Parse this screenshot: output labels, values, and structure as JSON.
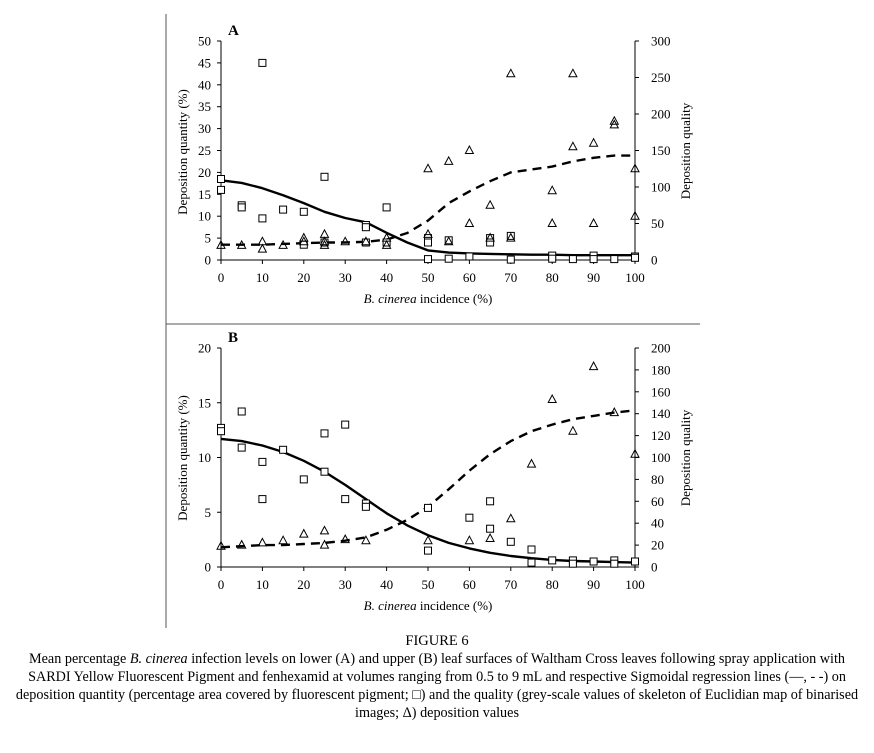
{
  "figure": {
    "label": "FIGURE 6",
    "caption": {
      "p1": "Mean percentage ",
      "i1": "B. cinerea",
      "p2": " infection levels on lower (A) and upper (B) leaf surfaces of Waltham Cross leaves following spray application with SARDI Yellow Fluorescent Pigment and fenhexamid at volumes ranging from 0.5 to 9 mL and respective Sigmoidal regression lines (—, - -) on deposition quantity (percentage area covered by fluorescent pigment; □) and the quality (grey-scale values of skeleton of Euclidian map of binarised images; Δ) deposition values"
    }
  },
  "chart_data": [
    {
      "type": "scatter",
      "panel_label": "A",
      "xlabel_italic": "B. cinerea",
      "xlabel_rest": " incidence (%)",
      "ylabel": "Deposition quantity (%)",
      "y2label": "Deposition quality",
      "xlim": [
        0,
        100
      ],
      "ylim": [
        0,
        50
      ],
      "y2lim": [
        0,
        300
      ],
      "x_ticks": [
        0,
        10,
        20,
        30,
        40,
        50,
        60,
        70,
        80,
        90,
        100
      ],
      "y_ticks": [
        0,
        5,
        10,
        15,
        20,
        25,
        30,
        35,
        40,
        45,
        50
      ],
      "y2_ticks": [
        0,
        50,
        100,
        150,
        200,
        250,
        300
      ],
      "series": [
        {
          "axis": "left",
          "marker": "square",
          "points": [
            [
              0,
              18.5
            ],
            [
              0,
              16
            ],
            [
              5,
              12.5
            ],
            [
              5,
              12
            ],
            [
              10,
              45
            ],
            [
              10,
              9.5
            ],
            [
              15,
              11.5
            ],
            [
              20,
              11
            ],
            [
              20,
              3.5
            ],
            [
              25,
              19
            ],
            [
              25,
              4
            ],
            [
              35,
              8
            ],
            [
              35,
              7.5
            ],
            [
              35,
              4
            ],
            [
              40,
              12
            ],
            [
              40,
              4
            ],
            [
              50,
              5
            ],
            [
              50,
              4
            ],
            [
              50,
              0.2
            ],
            [
              55,
              4.5
            ],
            [
              55,
              0.3
            ],
            [
              60,
              0.8
            ],
            [
              65,
              5
            ],
            [
              65,
              4
            ],
            [
              70,
              5.5
            ],
            [
              70,
              0.1
            ],
            [
              80,
              1
            ],
            [
              80,
              0.3
            ],
            [
              85,
              0.2
            ],
            [
              90,
              1
            ],
            [
              90,
              0.2
            ],
            [
              95,
              0.2
            ],
            [
              100,
              0.8
            ],
            [
              100,
              0.5
            ]
          ]
        },
        {
          "axis": "right",
          "marker": "triangle",
          "points": [
            [
              0,
              20
            ],
            [
              5,
              20
            ],
            [
              10,
              25
            ],
            [
              10,
              15
            ],
            [
              15,
              20
            ],
            [
              20,
              30
            ],
            [
              20,
              25
            ],
            [
              25,
              35
            ],
            [
              25,
              25
            ],
            [
              25,
              20
            ],
            [
              30,
              25
            ],
            [
              35,
              25
            ],
            [
              40,
              30
            ],
            [
              40,
              20
            ],
            [
              50,
              35
            ],
            [
              50,
              125
            ],
            [
              55,
              135
            ],
            [
              55,
              25
            ],
            [
              60,
              150
            ],
            [
              60,
              50
            ],
            [
              65,
              75
            ],
            [
              65,
              30
            ],
            [
              70,
              255
            ],
            [
              70,
              30
            ],
            [
              80,
              95
            ],
            [
              80,
              50
            ],
            [
              85,
              255
            ],
            [
              85,
              155
            ],
            [
              90,
              160
            ],
            [
              90,
              50
            ],
            [
              95,
              190
            ],
            [
              95,
              185
            ],
            [
              100,
              125
            ],
            [
              100,
              60
            ]
          ]
        }
      ],
      "curves": [
        {
          "axis": "left",
          "style": "solid",
          "points": [
            [
              0,
              18.2
            ],
            [
              5,
              17.6
            ],
            [
              10,
              16.4
            ],
            [
              15,
              14.8
            ],
            [
              20,
              13
            ],
            [
              25,
              11
            ],
            [
              30,
              9.6
            ],
            [
              35,
              8.6
            ],
            [
              40,
              6.2
            ],
            [
              45,
              4
            ],
            [
              50,
              2.2
            ],
            [
              55,
              1.7
            ],
            [
              60,
              1.5
            ],
            [
              65,
              1.4
            ],
            [
              70,
              1.3
            ],
            [
              75,
              1.2
            ],
            [
              80,
              1.2
            ],
            [
              85,
              1.1
            ],
            [
              90,
              1.1
            ],
            [
              95,
              1.1
            ],
            [
              100,
              1.1
            ]
          ]
        },
        {
          "axis": "right",
          "style": "dashed",
          "points": [
            [
              0,
              21
            ],
            [
              5,
              21
            ],
            [
              10,
              21
            ],
            [
              15,
              22
            ],
            [
              20,
              23
            ],
            [
              25,
              24
            ],
            [
              30,
              24
            ],
            [
              35,
              25
            ],
            [
              40,
              28
            ],
            [
              45,
              37
            ],
            [
              50,
              54
            ],
            [
              55,
              78
            ],
            [
              60,
              94
            ],
            [
              65,
              108
            ],
            [
              70,
              120
            ],
            [
              75,
              124
            ],
            [
              80,
              128
            ],
            [
              85,
              135
            ],
            [
              90,
              140
            ],
            [
              95,
              143
            ],
            [
              100,
              143
            ]
          ]
        }
      ]
    },
    {
      "type": "scatter",
      "panel_label": "B",
      "xlabel_italic": "B. cinerea",
      "xlabel_rest": " incidence (%)",
      "ylabel": "Deposition quantity (%)",
      "y2label": "Deposition quality",
      "xlim": [
        0,
        100
      ],
      "ylim": [
        0,
        20
      ],
      "y2lim": [
        0,
        200
      ],
      "x_ticks": [
        0,
        10,
        20,
        30,
        40,
        50,
        60,
        70,
        80,
        90,
        100
      ],
      "y_ticks": [
        0,
        5,
        10,
        15,
        20
      ],
      "y2_ticks": [
        0,
        20,
        40,
        60,
        80,
        100,
        120,
        140,
        160,
        180,
        200
      ],
      "series": [
        {
          "axis": "left",
          "marker": "square",
          "points": [
            [
              0,
              12.7
            ],
            [
              0,
              12.4
            ],
            [
              5,
              14.2
            ],
            [
              5,
              10.9
            ],
            [
              10,
              9.6
            ],
            [
              10,
              6.2
            ],
            [
              15,
              10.7
            ],
            [
              20,
              8
            ],
            [
              25,
              12.2
            ],
            [
              25,
              8.7
            ],
            [
              30,
              13
            ],
            [
              30,
              6.2
            ],
            [
              35,
              5.8
            ],
            [
              35,
              5.5
            ],
            [
              50,
              5.4
            ],
            [
              50,
              1.5
            ],
            [
              60,
              4.5
            ],
            [
              65,
              6
            ],
            [
              65,
              3.5
            ],
            [
              70,
              2.3
            ],
            [
              75,
              1.6
            ],
            [
              75,
              0.4
            ],
            [
              80,
              0.6
            ],
            [
              85,
              0.6
            ],
            [
              85,
              0.3
            ],
            [
              90,
              0.5
            ],
            [
              95,
              0.6
            ],
            [
              95,
              0.3
            ],
            [
              100,
              0.5
            ]
          ]
        },
        {
          "axis": "right",
          "marker": "triangle",
          "points": [
            [
              0,
              19
            ],
            [
              5,
              20
            ],
            [
              10,
              22
            ],
            [
              15,
              24
            ],
            [
              20,
              30
            ],
            [
              25,
              33
            ],
            [
              25,
              20
            ],
            [
              30,
              25
            ],
            [
              35,
              24
            ],
            [
              50,
              24
            ],
            [
              60,
              24
            ],
            [
              65,
              26
            ],
            [
              70,
              44
            ],
            [
              75,
              94
            ],
            [
              80,
              153
            ],
            [
              85,
              124
            ],
            [
              90,
              183
            ],
            [
              95,
              141
            ],
            [
              100,
              103
            ]
          ]
        }
      ],
      "curves": [
        {
          "axis": "left",
          "style": "solid",
          "points": [
            [
              0,
              11.7
            ],
            [
              5,
              11.5
            ],
            [
              10,
              11.1
            ],
            [
              15,
              10.5
            ],
            [
              20,
              9.7
            ],
            [
              25,
              8.7
            ],
            [
              30,
              7.5
            ],
            [
              35,
              6.2
            ],
            [
              40,
              4.9
            ],
            [
              45,
              3.8
            ],
            [
              50,
              2.9
            ],
            [
              55,
              2.2
            ],
            [
              60,
              1.7
            ],
            [
              65,
              1.3
            ],
            [
              70,
              1
            ],
            [
              75,
              0.8
            ],
            [
              80,
              0.65
            ],
            [
              85,
              0.55
            ],
            [
              90,
              0.5
            ],
            [
              95,
              0.45
            ],
            [
              100,
              0.4
            ]
          ]
        },
        {
          "axis": "right",
          "style": "dashed",
          "points": [
            [
              0,
              18
            ],
            [
              5,
              19
            ],
            [
              10,
              20
            ],
            [
              15,
              20
            ],
            [
              20,
              21
            ],
            [
              25,
              22
            ],
            [
              30,
              24
            ],
            [
              35,
              27
            ],
            [
              40,
              34
            ],
            [
              45,
              43
            ],
            [
              50,
              55
            ],
            [
              55,
              71
            ],
            [
              60,
              88
            ],
            [
              65,
              103
            ],
            [
              70,
              115
            ],
            [
              75,
              124
            ],
            [
              80,
              130
            ],
            [
              85,
              135
            ],
            [
              90,
              138
            ],
            [
              95,
              141
            ],
            [
              100,
              143
            ]
          ]
        }
      ]
    }
  ]
}
